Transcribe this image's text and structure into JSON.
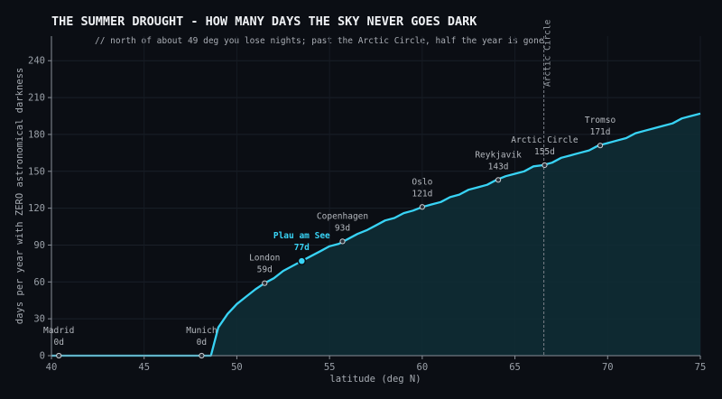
{
  "chart_data": {
    "type": "area",
    "title": "THE SUMMER DROUGHT  -  HOW MANY DAYS THE SKY NEVER GOES DARK",
    "subtitle": "// north of about 49 deg you lose nights; past the Arctic Circle, half the year is gone",
    "xlabel": "latitude (deg N)",
    "ylabel": "days per year with ZERO astronomical darkness",
    "xlim": [
      40,
      75
    ],
    "ylim": [
      0,
      260
    ],
    "xticks": [
      40,
      45,
      50,
      55,
      60,
      65,
      70,
      75
    ],
    "yticks": [
      0,
      30,
      60,
      90,
      120,
      150,
      180,
      210,
      240
    ],
    "grid": true,
    "line_color": "#38d3f5",
    "fill_color": "#0f2e36",
    "series": [
      {
        "x": [
          40,
          41,
          42,
          43,
          44,
          45,
          46,
          47,
          48,
          48.6,
          49,
          49.5,
          50,
          50.5,
          51,
          51.5,
          52,
          52.5,
          53,
          53.5,
          54,
          54.5,
          55,
          55.5,
          56,
          56.5,
          57,
          57.5,
          58,
          58.5,
          59,
          59.5,
          60,
          60.5,
          61,
          61.5,
          62,
          62.5,
          63,
          63.5,
          64,
          64.5,
          65,
          65.5,
          66,
          66.5,
          67,
          67.5,
          68,
          68.5,
          69,
          69.5,
          70,
          70.5,
          71,
          71.5,
          72,
          72.5,
          73,
          73.5,
          74,
          74.5,
          75
        ],
        "y": [
          0,
          0,
          0,
          0,
          0,
          0,
          0,
          0,
          0,
          0,
          23,
          34,
          42,
          48,
          54,
          59,
          63,
          69,
          73,
          77,
          81,
          85,
          89,
          91,
          95,
          99,
          102,
          106,
          110,
          112,
          116,
          118,
          121,
          123,
          125,
          129,
          131,
          135,
          137,
          139,
          143,
          146,
          148,
          150,
          154,
          155,
          157,
          161,
          163,
          165,
          167,
          171,
          173,
          175,
          177,
          181,
          183,
          185,
          187,
          189,
          193,
          195,
          197
        ]
      }
    ],
    "reference_line": {
      "x": 66.56,
      "label": "Arctic Circle"
    },
    "annotations": [
      {
        "name": "Madrid",
        "x": 40.4,
        "y": 0,
        "value": "0d",
        "highlight": false
      },
      {
        "name": "Munich",
        "x": 48.1,
        "y": 0,
        "value": "0d",
        "highlight": false
      },
      {
        "name": "London",
        "x": 51.5,
        "y": 59,
        "value": "59d",
        "highlight": false
      },
      {
        "name": "Plau am See",
        "x": 53.5,
        "y": 77,
        "value": "77d",
        "highlight": true
      },
      {
        "name": "Copenhagen",
        "x": 55.7,
        "y": 93,
        "value": "93d",
        "highlight": false
      },
      {
        "name": "Oslo",
        "x": 60,
        "y": 121,
        "value": "121d",
        "highlight": false
      },
      {
        "name": "Reykjavik",
        "x": 64.1,
        "y": 143,
        "value": "143d",
        "highlight": false
      },
      {
        "name": "Arctic Circle",
        "x": 66.6,
        "y": 155,
        "value": "155d",
        "highlight": false
      },
      {
        "name": "Tromso",
        "x": 69.6,
        "y": 171,
        "value": "171d",
        "highlight": false
      }
    ]
  }
}
